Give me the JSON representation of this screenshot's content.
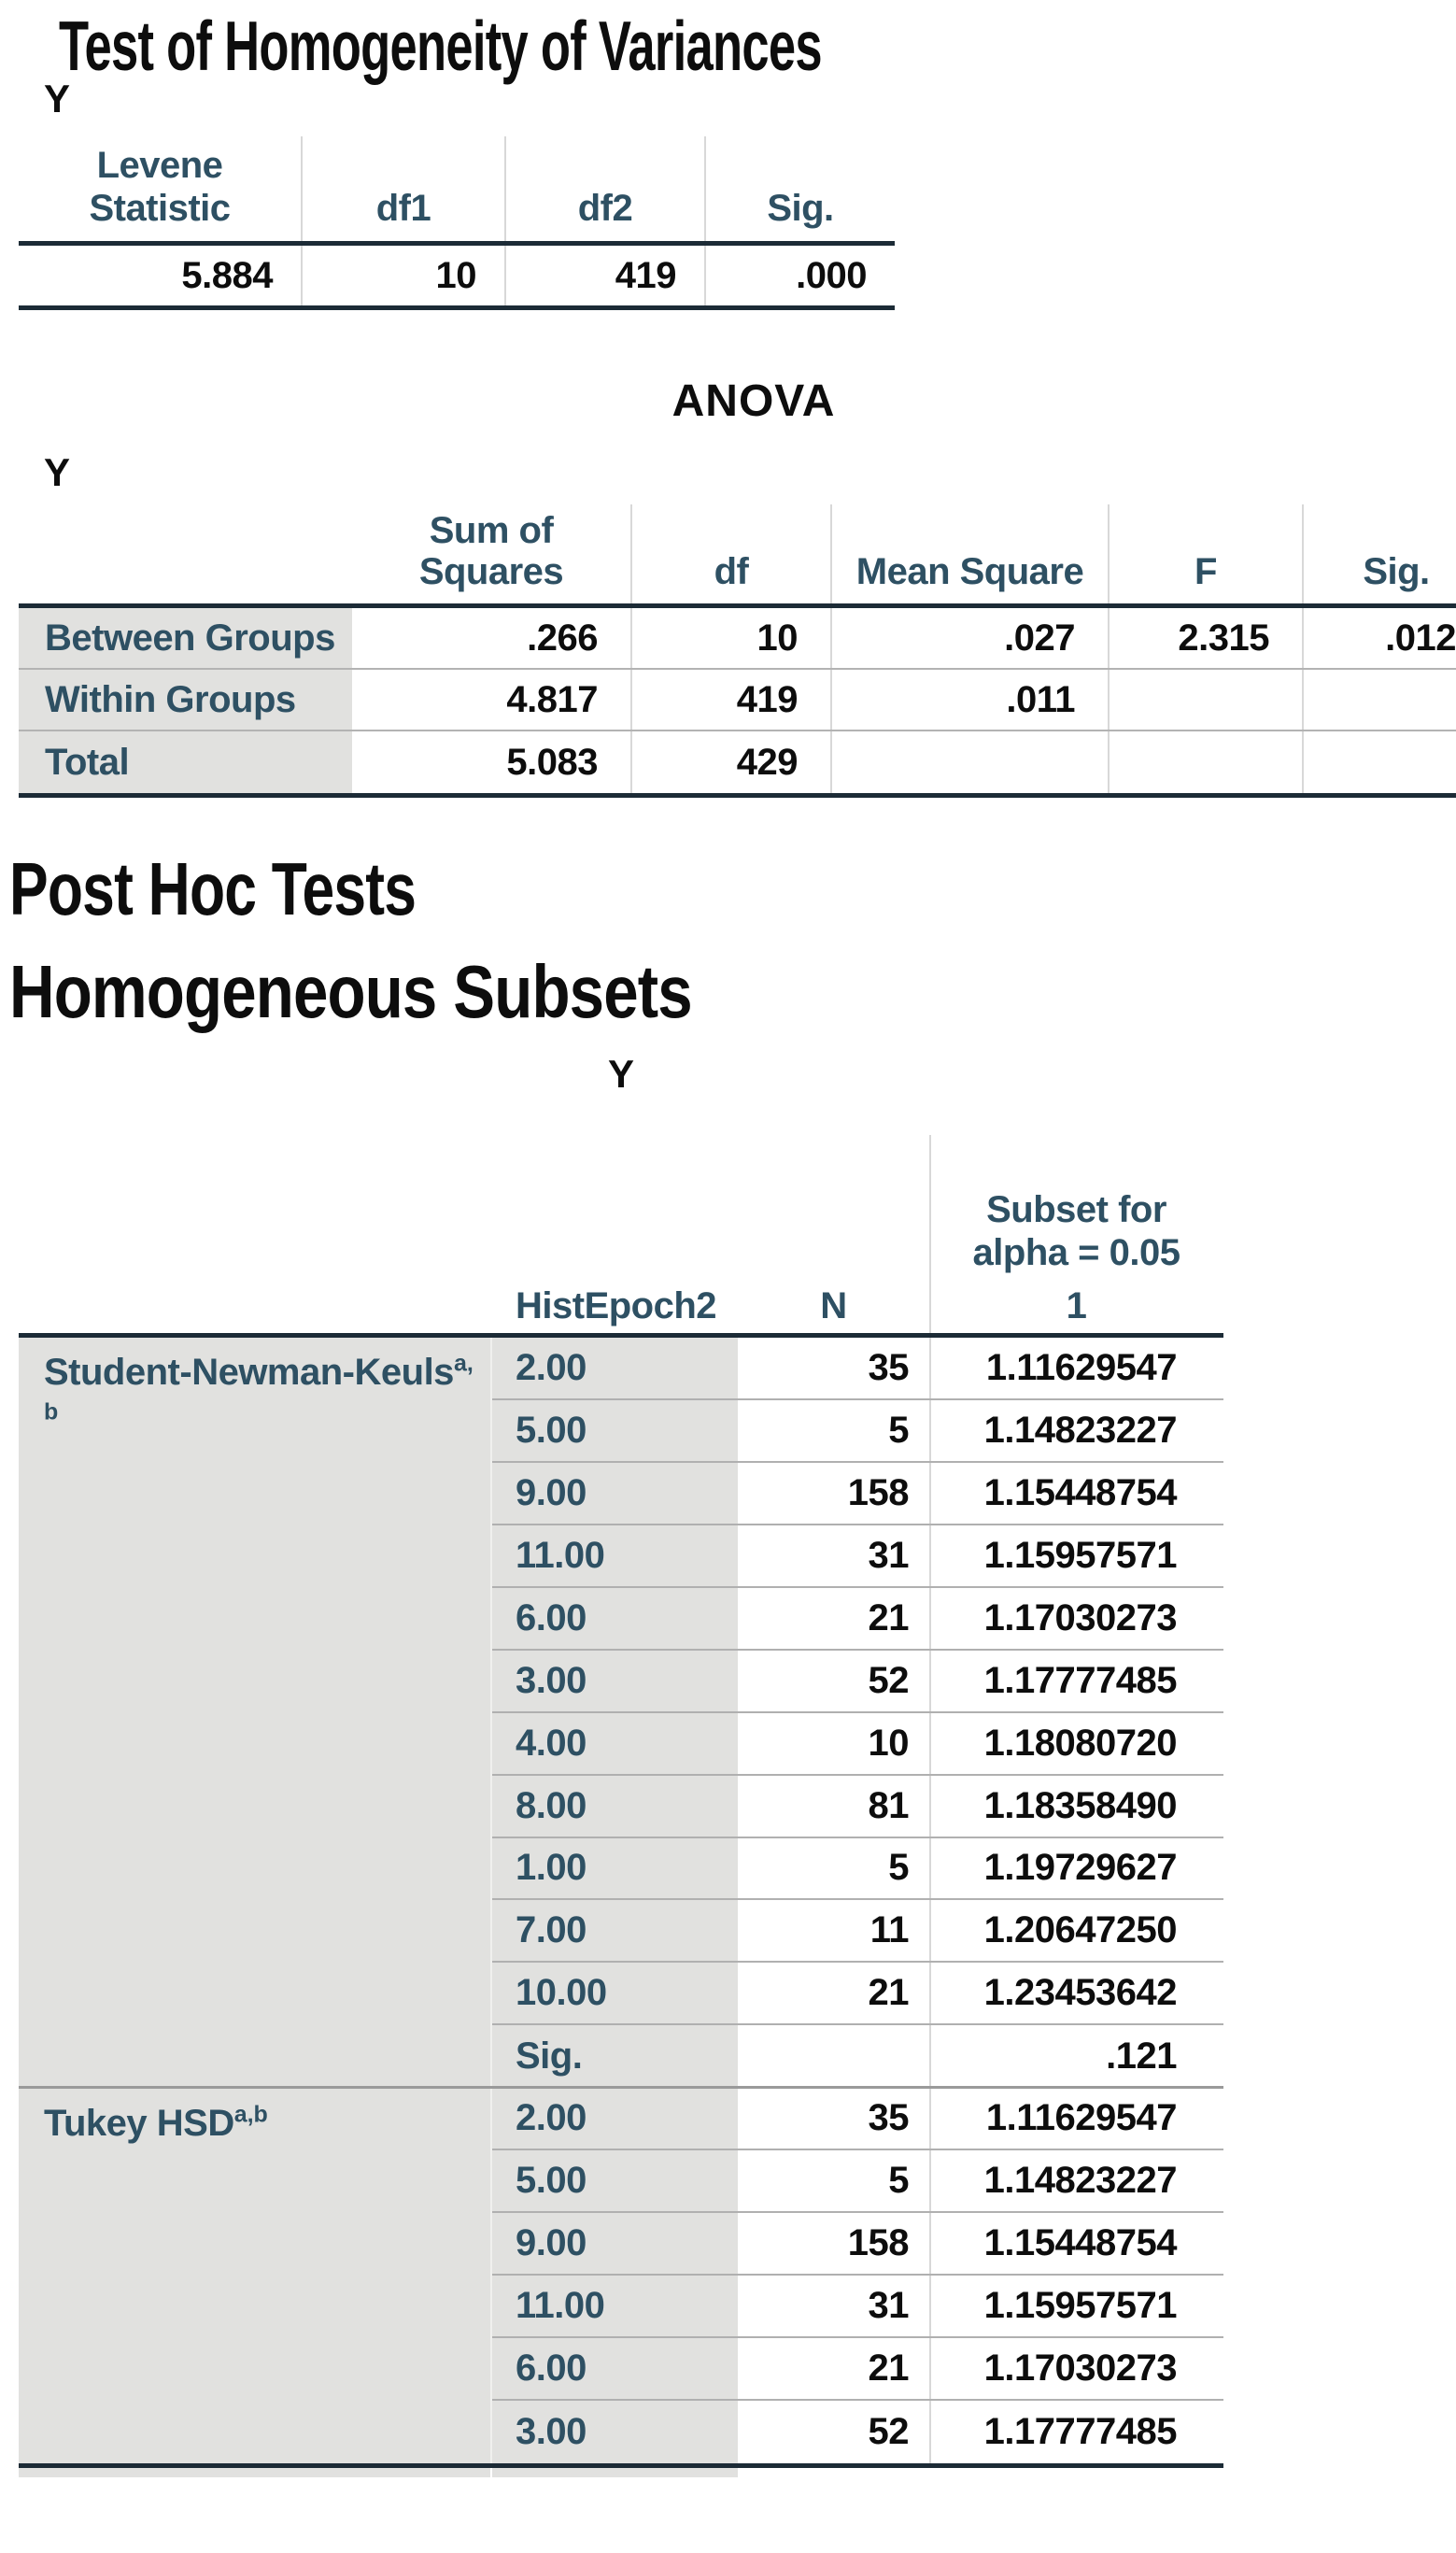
{
  "colors": {
    "header_text": "#2e5063",
    "data_text": "#0d0d0d",
    "row_label_bg": "#e1e1df",
    "thick_border": "#1c2b36",
    "row_separator": "#b0b0b0",
    "column_divider": "#d8d8d8"
  },
  "homogeneity": {
    "title": "Test of Homogeneity of Variances",
    "table_label": "Y",
    "columns": [
      "Levene Statistic",
      "df1",
      "df2",
      "Sig."
    ],
    "values": [
      "5.884",
      "10",
      "419",
      ".000"
    ]
  },
  "anova": {
    "title": "ANOVA",
    "table_label": "Y",
    "columns": [
      "Sum of Squares",
      "df",
      "Mean Square",
      "F",
      "Sig."
    ],
    "rows": [
      {
        "label": "Between Groups",
        "ss": ".266",
        "df": "10",
        "ms": ".027",
        "f": "2.315",
        "sig": ".012"
      },
      {
        "label": "Within Groups",
        "ss": "4.817",
        "df": "419",
        "ms": ".011",
        "f": "",
        "sig": ""
      },
      {
        "label": "Total",
        "ss": "5.083",
        "df": "429",
        "ms": "",
        "f": "",
        "sig": ""
      }
    ]
  },
  "sections": {
    "post_hoc": "Post Hoc Tests",
    "homogeneous_subsets": "Homogeneous Subsets"
  },
  "subsets": {
    "table_title": "Y",
    "headers": {
      "histepoch2": "HistEpoch2",
      "n": "N",
      "subset_line1": "Subset for",
      "subset_line2": "alpha = 0.05",
      "subset_col": "1"
    },
    "groups": [
      {
        "method": "Student-Newman-Keuls",
        "sup1": "a,",
        "sup2": "b",
        "rows": [
          {
            "h": "2.00",
            "n": "35",
            "v": "1.11629547"
          },
          {
            "h": "5.00",
            "n": "5",
            "v": "1.14823227"
          },
          {
            "h": "9.00",
            "n": "158",
            "v": "1.15448754"
          },
          {
            "h": "11.00",
            "n": "31",
            "v": "1.15957571"
          },
          {
            "h": "6.00",
            "n": "21",
            "v": "1.17030273"
          },
          {
            "h": "3.00",
            "n": "52",
            "v": "1.17777485"
          },
          {
            "h": "4.00",
            "n": "10",
            "v": "1.18080720"
          },
          {
            "h": "8.00",
            "n": "81",
            "v": "1.18358490"
          },
          {
            "h": "1.00",
            "n": "5",
            "v": "1.19729627"
          },
          {
            "h": "7.00",
            "n": "11",
            "v": "1.20647250"
          },
          {
            "h": "10.00",
            "n": "21",
            "v": "1.23453642"
          },
          {
            "h": "Sig.",
            "n": "",
            "v": ".121"
          }
        ]
      },
      {
        "method": "Tukey HSD",
        "sup1": "a,b",
        "sup2": "",
        "rows": [
          {
            "h": "2.00",
            "n": "35",
            "v": "1.11629547"
          },
          {
            "h": "5.00",
            "n": "5",
            "v": "1.14823227"
          },
          {
            "h": "9.00",
            "n": "158",
            "v": "1.15448754"
          },
          {
            "h": "11.00",
            "n": "31",
            "v": "1.15957571"
          },
          {
            "h": "6.00",
            "n": "21",
            "v": "1.17030273"
          },
          {
            "h": "3.00",
            "n": "52",
            "v": "1.17777485"
          }
        ]
      }
    ]
  }
}
